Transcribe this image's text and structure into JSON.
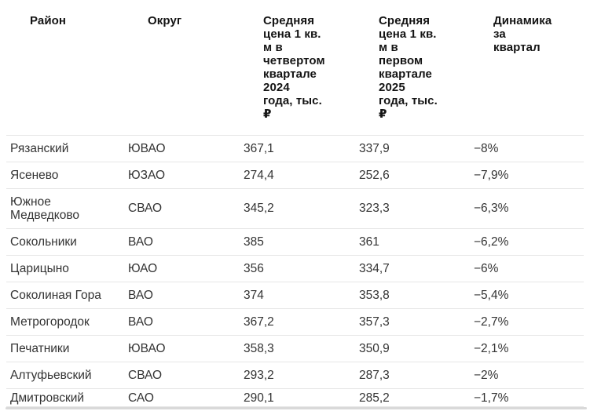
{
  "colors": {
    "background": "#ffffff",
    "header_text": "#141414",
    "body_text": "#333333",
    "separator": "#e6e6e6",
    "scrollbar_track": "#d9d9d9"
  },
  "chart_data": {
    "type": "table",
    "columns": [
      {
        "key": "district",
        "label": "Район",
        "display": "Район"
      },
      {
        "key": "okrug",
        "label": "Округ",
        "display": "Округ"
      },
      {
        "key": "price_q4_2024",
        "label": "Средняя цена 1 кв. м в четвертом квартале 2024 года, тыс. ₽",
        "display": "Средняя\nцена 1 кв.\nм в\nчетвертом\nквартале\n2024\nгода, тыс.\n₽"
      },
      {
        "key": "price_q1_2025",
        "label": "Средняя цена 1 кв. м в первом квартале 2025 года, тыс. ₽",
        "display": "Средняя\nцена 1 кв.\nм в\nпервом\nквартале\n2025\nгода, тыс.\n₽"
      },
      {
        "key": "dynamics",
        "label": "Динамика за квартал",
        "display": "Динамика\nза\nквартал"
      }
    ],
    "rows": [
      {
        "district": "Рязанский",
        "okrug": "ЮВАО",
        "price_q4_2024": "367,1",
        "price_q1_2025": "337,9",
        "dynamics": "−8%"
      },
      {
        "district": "Ясенево",
        "okrug": "ЮЗАО",
        "price_q4_2024": "274,4",
        "price_q1_2025": "252,6",
        "dynamics": "−7,9%"
      },
      {
        "district": "Южное Медведково",
        "okrug": "СВАО",
        "price_q4_2024": "345,2",
        "price_q1_2025": "323,3",
        "dynamics": "−6,3%"
      },
      {
        "district": "Сокольники",
        "okrug": "ВАО",
        "price_q4_2024": "385",
        "price_q1_2025": "361",
        "dynamics": "−6,2%"
      },
      {
        "district": "Царицыно",
        "okrug": "ЮАО",
        "price_q4_2024": "356",
        "price_q1_2025": "334,7",
        "dynamics": "−6%"
      },
      {
        "district": "Соколиная Гора",
        "okrug": "ВАО",
        "price_q4_2024": "374",
        "price_q1_2025": "353,8",
        "dynamics": "−5,4%"
      },
      {
        "district": "Метрогородок",
        "okrug": "ВАО",
        "price_q4_2024": "367,2",
        "price_q1_2025": "357,3",
        "dynamics": "−2,7%"
      },
      {
        "district": "Печатники",
        "okrug": "ЮВАО",
        "price_q4_2024": "358,3",
        "price_q1_2025": "350,9",
        "dynamics": "−2,1%"
      },
      {
        "district": "Алтуфьевский",
        "okrug": "СВАО",
        "price_q4_2024": "293,2",
        "price_q1_2025": "287,3",
        "dynamics": "−2%"
      },
      {
        "district": "Дмитровский",
        "okrug": "САО",
        "price_q4_2024": "290,1",
        "price_q1_2025": "285,2",
        "dynamics": "−1,7%"
      }
    ]
  }
}
